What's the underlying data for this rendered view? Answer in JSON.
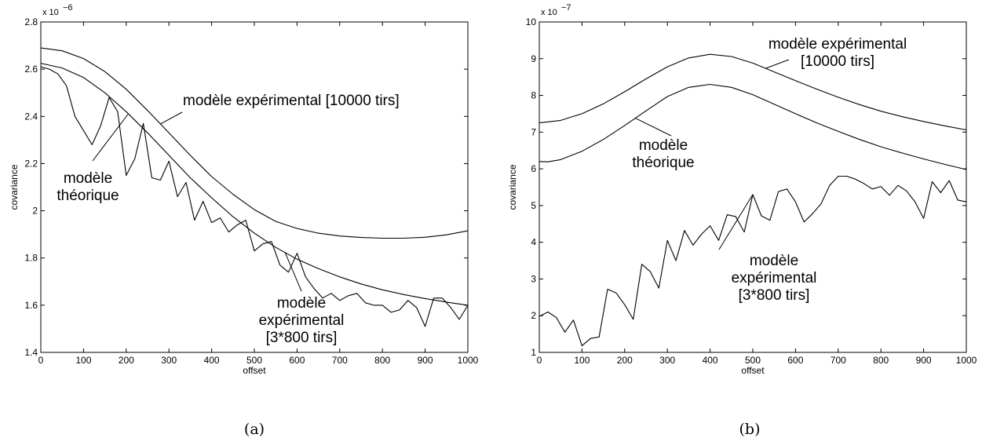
{
  "chart_data": [
    {
      "type": "line",
      "caption": "(a)",
      "xlabel": "offset",
      "ylabel": "covariance",
      "y_multiplier": "x 10",
      "y_exponent": "−6",
      "xlim": [
        0,
        1000
      ],
      "ylim": [
        1.4,
        2.8
      ],
      "xticks": [
        0,
        100,
        200,
        300,
        400,
        500,
        600,
        700,
        800,
        900,
        1000
      ],
      "yticks": [
        "1.4",
        "1.6",
        "1.8",
        "2",
        "2.2",
        "2.4",
        "2.6",
        "2.8"
      ],
      "grid": false,
      "series": [
        {
          "x": [
            0,
            50,
            100,
            150,
            200,
            250,
            300,
            350,
            400,
            450,
            500,
            550,
            600,
            650,
            700,
            750,
            800,
            850,
            900,
            950,
            1000
          ],
          "y": [
            2.69,
            2.678,
            2.645,
            2.59,
            2.515,
            2.425,
            2.33,
            2.235,
            2.145,
            2.07,
            2.005,
            1.955,
            1.925,
            1.905,
            1.893,
            1.887,
            1.884,
            1.884,
            1.888,
            1.898,
            1.915
          ]
        },
        {
          "x": [
            0,
            50,
            100,
            150,
            200,
            250,
            300,
            350,
            400,
            450,
            500,
            550,
            600,
            650,
            700,
            750,
            800,
            850,
            900,
            950,
            1000
          ],
          "y": [
            2.625,
            2.605,
            2.565,
            2.5,
            2.42,
            2.33,
            2.235,
            2.14,
            2.055,
            1.975,
            1.905,
            1.845,
            1.795,
            1.755,
            1.72,
            1.69,
            1.665,
            1.645,
            1.628,
            1.613,
            1.6
          ]
        },
        {
          "x": [
            0,
            20,
            40,
            60,
            80,
            100,
            120,
            140,
            160,
            180,
            200,
            220,
            240,
            260,
            280,
            300,
            320,
            340,
            360,
            380,
            400,
            420,
            440,
            460,
            480,
            500,
            520,
            540,
            560,
            580,
            600,
            620,
            640,
            660,
            680,
            700,
            720,
            740,
            760,
            780,
            800,
            820,
            840,
            860,
            880,
            900,
            920,
            940,
            960,
            980,
            1000
          ],
          "y": [
            2.61,
            2.6,
            2.58,
            2.53,
            2.4,
            2.34,
            2.28,
            2.36,
            2.48,
            2.42,
            2.15,
            2.22,
            2.37,
            2.14,
            2.13,
            2.21,
            2.06,
            2.12,
            1.96,
            2.04,
            1.95,
            1.97,
            1.91,
            1.94,
            1.96,
            1.83,
            1.86,
            1.87,
            1.77,
            1.74,
            1.82,
            1.72,
            1.67,
            1.63,
            1.65,
            1.62,
            1.64,
            1.65,
            1.61,
            1.6,
            1.6,
            1.57,
            1.58,
            1.62,
            1.59,
            1.51,
            1.63,
            1.63,
            1.59,
            1.54,
            1.6
          ]
        }
      ],
      "annotations": [
        {
          "lines": [
            "modèle expérimental [10000 tirs]"
          ]
        },
        {
          "lines": [
            "modèle",
            "théorique"
          ]
        },
        {
          "lines": [
            "modèle",
            "expérimental",
            "[3*800 tirs]"
          ]
        }
      ]
    },
    {
      "type": "line",
      "caption": "(b)",
      "xlabel": "offset",
      "ylabel": "covariance",
      "y_multiplier": "x 10",
      "y_exponent": "−7",
      "xlim": [
        0,
        1000
      ],
      "ylim": [
        1,
        10
      ],
      "xticks": [
        0,
        100,
        200,
        300,
        400,
        500,
        600,
        700,
        800,
        900,
        1000
      ],
      "yticks": [
        "1",
        "2",
        "3",
        "4",
        "5",
        "6",
        "7",
        "8",
        "9",
        "10"
      ],
      "grid": false,
      "series": [
        {
          "x": [
            0,
            50,
            100,
            150,
            200,
            250,
            300,
            350,
            400,
            450,
            500,
            550,
            600,
            650,
            700,
            750,
            800,
            850,
            900,
            950,
            1000
          ],
          "y": [
            7.25,
            7.32,
            7.5,
            7.77,
            8.1,
            8.45,
            8.78,
            9.02,
            9.12,
            9.06,
            8.88,
            8.64,
            8.4,
            8.17,
            7.95,
            7.75,
            7.57,
            7.42,
            7.29,
            7.17,
            7.06
          ]
        },
        {
          "x": [
            0,
            20,
            50,
            100,
            150,
            200,
            250,
            300,
            350,
            400,
            450,
            500,
            550,
            600,
            650,
            700,
            750,
            800,
            850,
            900,
            950,
            1000
          ],
          "y": [
            6.2,
            6.19,
            6.25,
            6.48,
            6.8,
            7.18,
            7.58,
            7.97,
            8.22,
            8.3,
            8.22,
            8.02,
            7.76,
            7.5,
            7.25,
            7.02,
            6.8,
            6.6,
            6.43,
            6.27,
            6.12,
            5.98
          ]
        },
        {
          "x": [
            0,
            20,
            40,
            60,
            80,
            100,
            120,
            140,
            160,
            180,
            200,
            220,
            240,
            260,
            280,
            300,
            320,
            340,
            360,
            380,
            400,
            420,
            440,
            460,
            480,
            500,
            520,
            540,
            560,
            580,
            600,
            620,
            640,
            660,
            680,
            700,
            720,
            740,
            760,
            780,
            800,
            820,
            840,
            860,
            880,
            900,
            920,
            940,
            960,
            980,
            1000
          ],
          "y": [
            1.98,
            2.1,
            1.95,
            1.55,
            1.88,
            1.18,
            1.38,
            1.42,
            2.72,
            2.62,
            2.3,
            1.9,
            3.4,
            3.2,
            2.75,
            4.05,
            3.5,
            4.32,
            3.92,
            4.22,
            4.45,
            4.05,
            4.75,
            4.7,
            4.28,
            5.3,
            4.72,
            4.6,
            5.38,
            5.45,
            5.1,
            4.55,
            4.78,
            5.05,
            5.55,
            5.8,
            5.8,
            5.72,
            5.6,
            5.45,
            5.52,
            5.28,
            5.55,
            5.4,
            5.1,
            4.65,
            5.65,
            5.35,
            5.68,
            5.15,
            5.1
          ]
        }
      ],
      "annotations": [
        {
          "lines": [
            "modèle expérimental",
            "[10000 tirs]"
          ]
        },
        {
          "lines": [
            "modèle",
            "théorique"
          ]
        },
        {
          "lines": [
            "modèle",
            "expérimental",
            "[3*800 tirs]"
          ]
        }
      ]
    }
  ]
}
